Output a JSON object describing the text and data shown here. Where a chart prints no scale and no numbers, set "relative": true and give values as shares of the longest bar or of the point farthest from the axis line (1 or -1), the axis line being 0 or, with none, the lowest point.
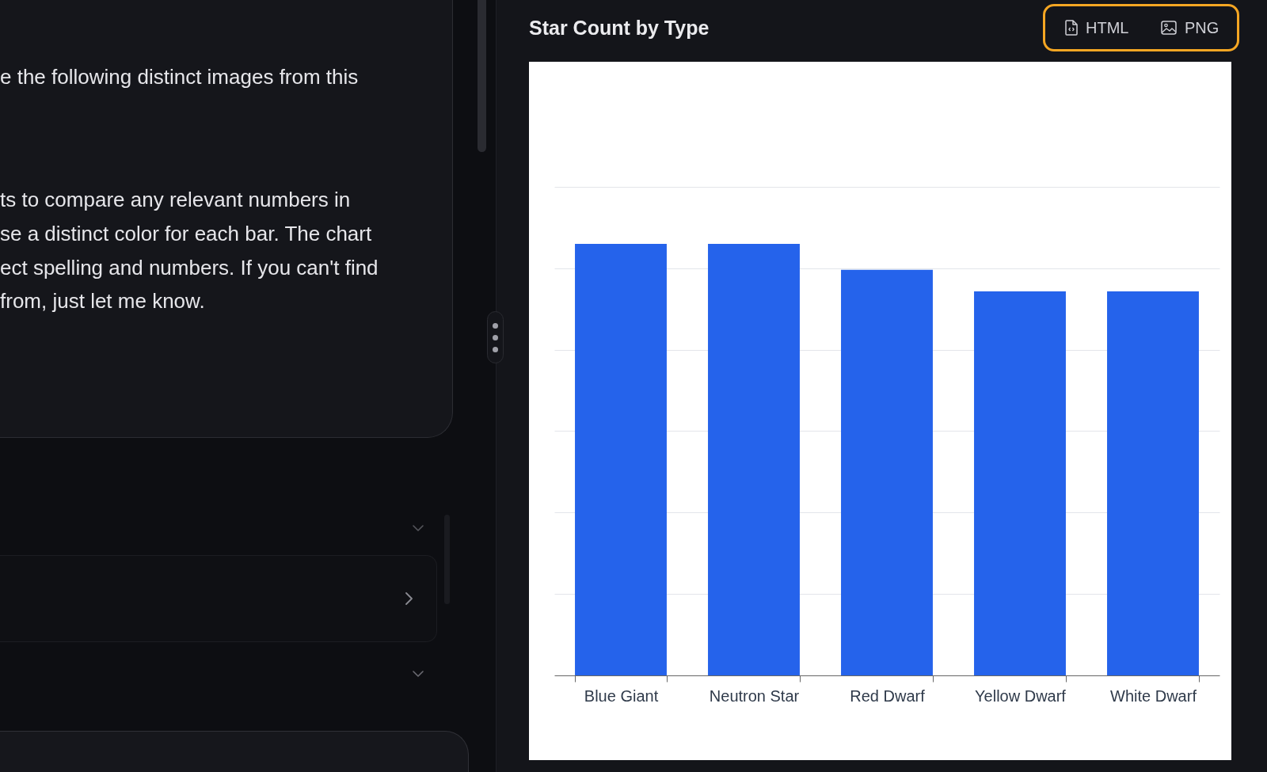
{
  "chart_data": {
    "type": "bar",
    "title": "Star Count by Type",
    "categories": [
      "Blue Giant",
      "Neutron Star",
      "Red Dwarf",
      "Yellow Dwarf",
      "White Dwarf"
    ],
    "values": [
      1,
      1,
      0.94,
      0.89,
      0.89
    ],
    "relative": true,
    "color": "#2563eb",
    "grid": "y",
    "annotations": [
      "e the following distinct images from this",
      "ts to compare any relevant numbers in",
      "se a distinct color for each bar. The chart",
      "ect spelling and numbers. If you can't find",
      "from, just let me know.",
      "HTML",
      "PNG"
    ]
  }
}
